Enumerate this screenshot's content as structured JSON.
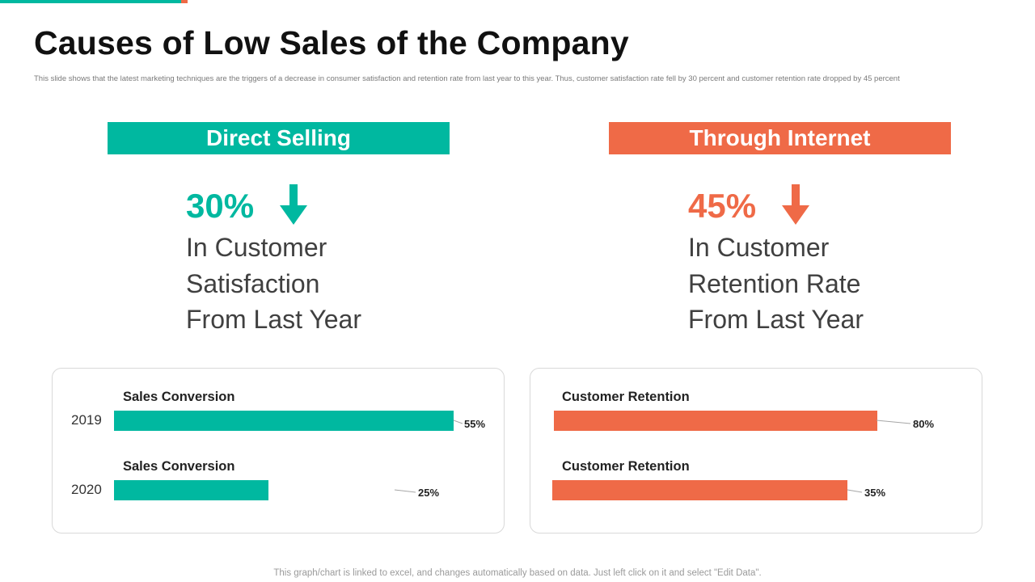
{
  "slide": {
    "title": "Causes of Low Sales of the Company",
    "subtitle": "This slide shows that the latest marketing techniques are the triggers of a decrease in consumer satisfaction and retention rate from last year to this year. Thus, customer satisfaction rate fell by 30 percent and customer retention rate dropped by 45 percent",
    "footer": "This graph/chart is linked to excel,  and changes automatically based on data. Just left click on it and select \"Edit Data\"."
  },
  "colors": {
    "teal": "#00b8a0",
    "orange": "#ef6a47"
  },
  "left": {
    "header": "Direct Selling",
    "percent": "30%",
    "arrow_icon": "arrow-down-icon",
    "desc_line1": "In Customer",
    "desc_line2": "Satisfaction",
    "desc_line3": "From Last Year",
    "bars": [
      {
        "label": "Sales Conversion",
        "year": "2019",
        "value": 55,
        "display": "55%"
      },
      {
        "label": "Sales Conversion",
        "year": "2020",
        "value": 25,
        "display": "25%"
      }
    ]
  },
  "right": {
    "header": "Through Internet",
    "percent": "45%",
    "arrow_icon": "arrow-down-icon",
    "desc_line1": "In Customer",
    "desc_line2": "Retention Rate",
    "desc_line3": "From Last Year",
    "bars": [
      {
        "label": "Customer Retention",
        "value": 80,
        "display": "80%"
      },
      {
        "label": "Customer Retention",
        "value": 35,
        "display": "35%"
      }
    ]
  },
  "chart_data": [
    {
      "type": "bar",
      "categories": [
        "2019",
        "2020"
      ],
      "series": [
        {
          "name": "Sales Conversion",
          "values": [
            55,
            25
          ]
        }
      ]
    },
    {
      "type": "bar",
      "categories": [
        "",
        ""
      ],
      "series": [
        {
          "name": "Customer Retention",
          "values": [
            80,
            35
          ]
        }
      ]
    }
  ]
}
